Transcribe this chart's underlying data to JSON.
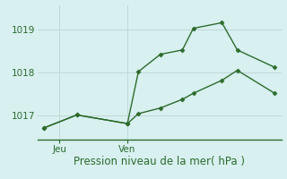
{
  "title": "Pression niveau de la mer( hPa )",
  "bg_color": "#d8f0f0",
  "grid_color": "#c0d8d8",
  "line_color": "#2d6b2d",
  "spine_color": "#2d6b2d",
  "yticks": [
    1017,
    1018,
    1019
  ],
  "ylim": [
    1016.45,
    1019.55
  ],
  "xlim": [
    -0.3,
    10.8
  ],
  "xtick_positions": [
    0.7,
    3.8
  ],
  "xtick_labels": [
    "Jeu",
    "Ven"
  ],
  "line1_x": [
    0.0,
    1.5,
    3.8,
    4.3,
    5.3,
    6.3,
    6.8,
    8.1,
    8.8,
    10.5
  ],
  "line1_y": [
    1016.72,
    1017.02,
    1016.82,
    1018.02,
    1018.42,
    1018.52,
    1019.02,
    1019.15,
    1018.52,
    1018.12
  ],
  "line2_x": [
    0.0,
    1.5,
    3.8,
    4.3,
    5.3,
    6.3,
    6.8,
    8.1,
    8.8,
    10.5
  ],
  "line2_y": [
    1016.72,
    1017.02,
    1016.82,
    1017.05,
    1017.18,
    1017.38,
    1017.52,
    1017.82,
    1018.05,
    1017.52
  ],
  "marker": "D",
  "markersize": 2.5,
  "linewidth": 1.0,
  "title_fontsize": 8.5,
  "tick_fontsize": 7.5
}
